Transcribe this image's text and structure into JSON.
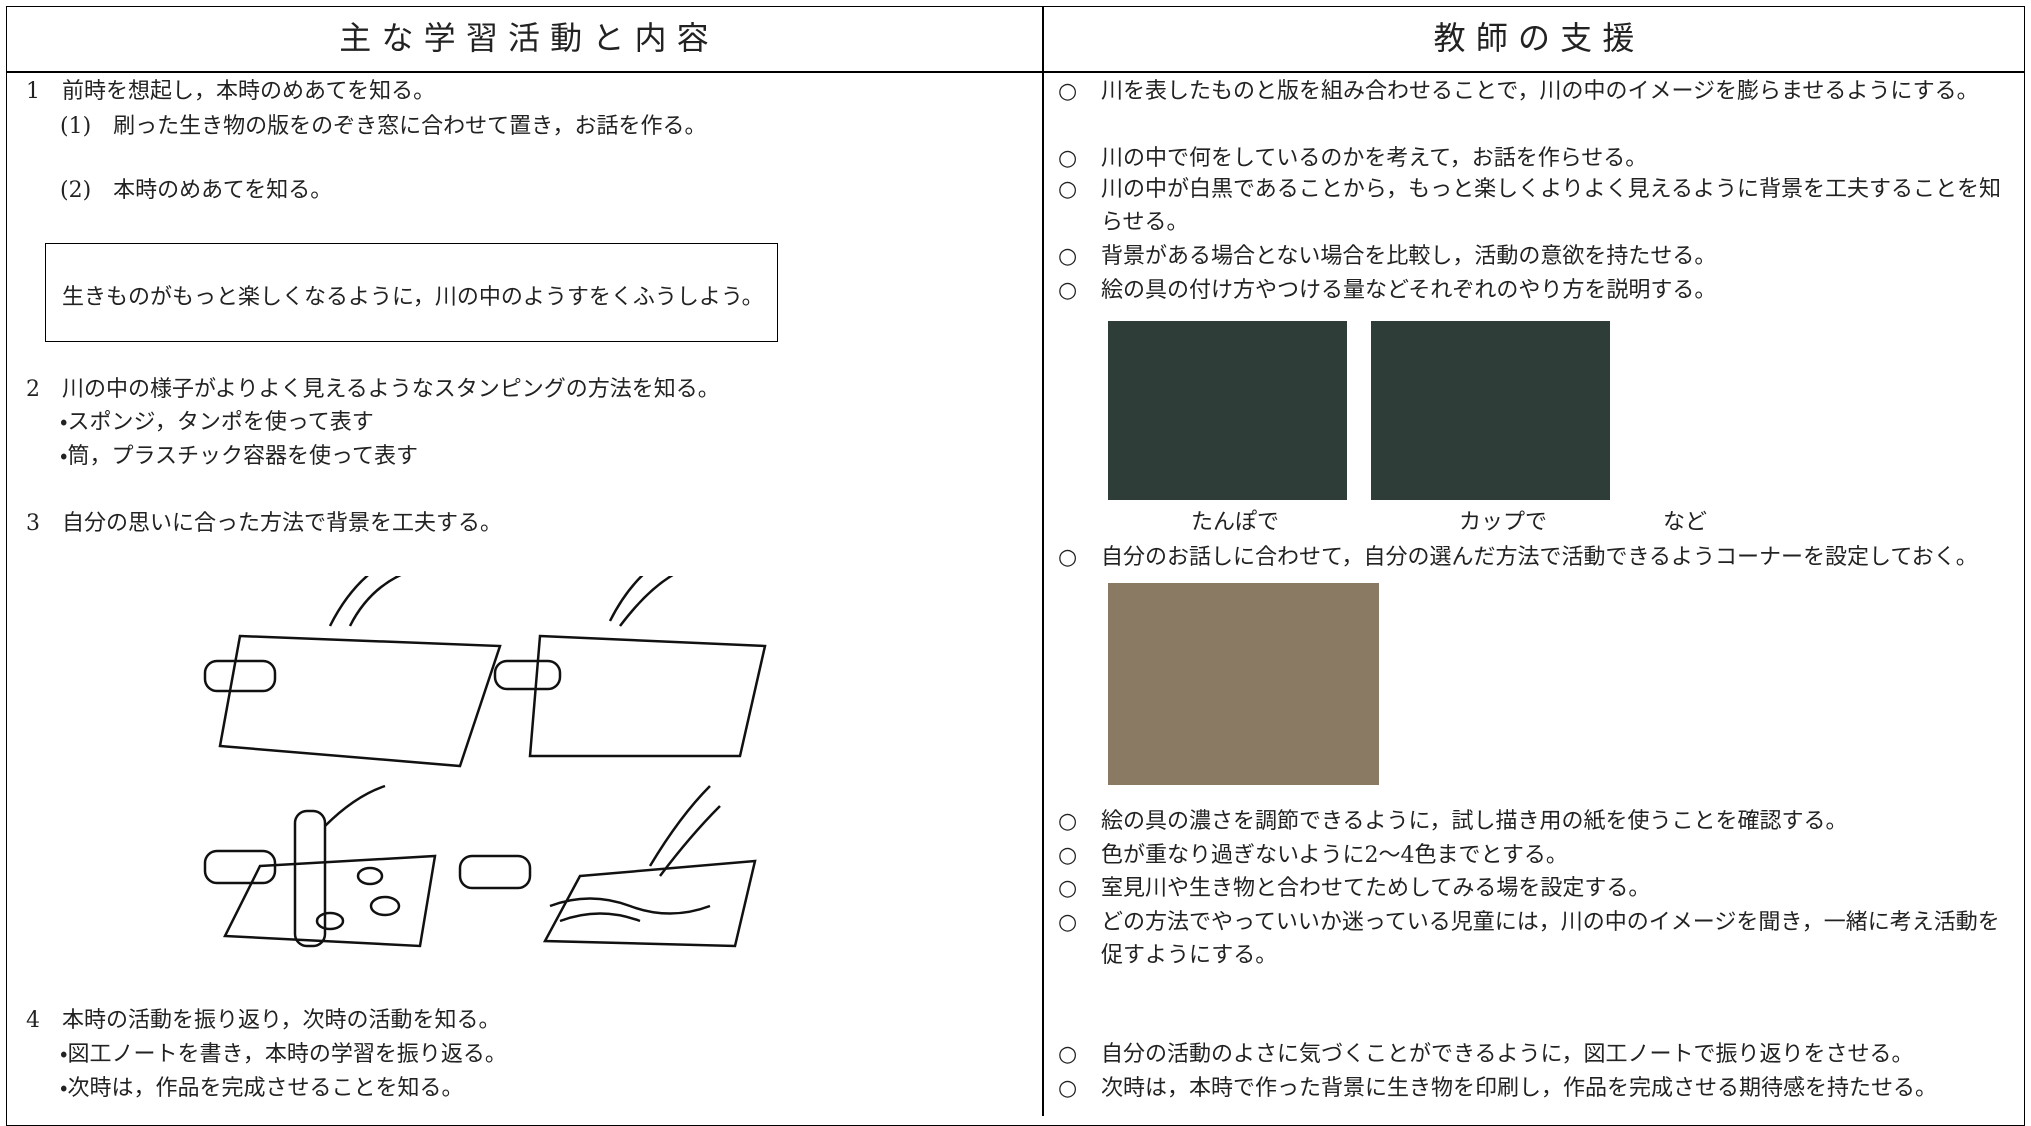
{
  "header": {
    "left": "主 な 学 習 活 動 と 内 容",
    "right": "教 師 の 支 援"
  },
  "left": {
    "items": [
      "1　前時を想起し，本時のめあてを知る。",
      "(1)　刷った生き物の版をのぞき窓に合わせて置き，お話を作る。",
      "(2)　本時のめあてを知る。",
      "生きものがもっと楽しくなるように，川の中のようすをくふうしよう。",
      "2　川の中の様子がよりよく見えるようなスタンピングの方法を知る。",
      "・スポンジ，タンポを使って表す",
      "・筒，プラスチック容器を使って表す",
      "3　自分の思いに合った方法で背景を工夫する。",
      "4　本時の活動を振り返り，次時の活動を知る。",
      "・図工ノートを書き，本時の学習を振り返る。",
      "・次時は，作品を完成させることを知る。"
    ]
  },
  "right": {
    "bullet": "○",
    "items": [
      "川を表したものと版を組み合わせることで，川の中のイメージを膨らませるようにする。",
      "川の中で何をしているのかを考えて，お話を作らせる。",
      "川の中が白黒であることから，もっと楽しくよりよく見えるように背景を工夫することを知らせる。",
      "背景がある場合とない場合を比較し，活動の意欲を持たせる。",
      "絵の具の付け方やつける量などそれぞれのやり方を説明する。",
      "自分のお話しに合わせて，自分の選んだ方法で活動できるようコーナーを設定しておく。",
      "絵の具の濃さを調節できるように，試し描き用の紙を使うことを確認する。",
      "色が重なり過ぎないように2～4色までとする。",
      "室見川や生き物と合わせてためしてみる場を設定する。",
      "どの方法でやっていいか迷っている児童には，川の中のイメージを聞き，一緒に考え活動を促すようにする。",
      "自分の活動のよさに気づくことができるように，図工ノートで振り返りをさせる。",
      "次時は，本時で作った背景に生き物を印刷し，作品を完成させる期待感を持たせる。"
    ],
    "captions": [
      "たんぽで",
      "カップで",
      "など"
    ]
  }
}
